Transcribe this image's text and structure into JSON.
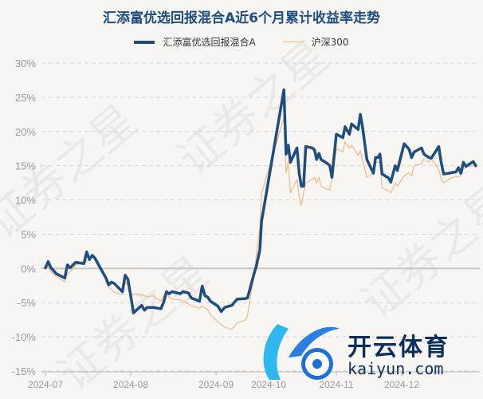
{
  "colors": {
    "fund": "#1f4e7e",
    "index": "#f0b98a",
    "grid": "#d9d6d0",
    "zero": "#c8c6c2",
    "tick": "#9a9a9a"
  },
  "watermark": "证券之星",
  "logo": {
    "cn": "开云体育",
    "en": "kaiyun.com"
  },
  "chart_data": {
    "type": "line",
    "title": "汇添富优选回报混合A近6个月累计收益率走势",
    "legend_position": "top",
    "grid": true,
    "ylim": [
      -15,
      30
    ],
    "y_ticks": [
      "30%",
      "25%",
      "20%",
      "15%",
      "10%",
      "5%",
      "0%",
      "-5%",
      "-10%",
      "-15%"
    ],
    "y_tick_values": [
      30,
      25,
      20,
      15,
      10,
      5,
      0,
      -5,
      -10,
      -15
    ],
    "x_ticks": [
      "2024-07",
      "2024-08",
      "2024-09",
      "2024-10",
      "2024-11",
      "2024-12"
    ],
    "x": [
      "2024-07-01",
      "2024-07-02",
      "2024-07-03",
      "2024-07-05",
      "2024-07-08",
      "2024-07-09",
      "2024-07-10",
      "2024-07-12",
      "2024-07-15",
      "2024-07-16",
      "2024-07-17",
      "2024-07-18",
      "2024-07-19",
      "2024-07-22",
      "2024-07-23",
      "2024-07-24",
      "2024-07-25",
      "2024-07-26",
      "2024-07-29",
      "2024-07-30",
      "2024-07-31",
      "2024-08-01",
      "2024-08-02",
      "2024-08-05",
      "2024-08-06",
      "2024-08-07",
      "2024-08-09",
      "2024-08-12",
      "2024-08-13",
      "2024-08-14",
      "2024-08-15",
      "2024-08-16",
      "2024-08-19",
      "2024-08-20",
      "2024-08-22",
      "2024-08-23",
      "2024-08-26",
      "2024-08-27",
      "2024-08-28",
      "2024-08-29",
      "2024-08-30",
      "2024-09-02",
      "2024-09-04",
      "2024-09-06",
      "2024-09-10",
      "2024-09-13",
      "2024-09-18",
      "2024-09-19",
      "2024-09-23",
      "2024-09-24",
      "2024-09-26",
      "2024-09-27",
      "2024-10-08",
      "2024-10-09",
      "2024-10-10",
      "2024-10-11",
      "2024-10-14",
      "2024-10-15",
      "2024-10-16",
      "2024-10-17",
      "2024-10-18",
      "2024-10-21",
      "2024-10-22",
      "2024-10-23",
      "2024-10-24",
      "2024-10-25",
      "2024-10-28",
      "2024-10-29",
      "2024-10-30",
      "2024-11-01",
      "2024-11-04",
      "2024-11-05",
      "2024-11-07",
      "2024-11-08",
      "2024-11-11",
      "2024-11-12",
      "2024-11-13",
      "2024-11-15",
      "2024-11-18",
      "2024-11-19",
      "2024-11-20",
      "2024-11-21",
      "2024-11-22",
      "2024-11-25",
      "2024-11-26",
      "2024-11-28",
      "2024-11-29",
      "2024-12-02",
      "2024-12-04",
      "2024-12-05",
      "2024-12-06",
      "2024-12-09",
      "2024-12-10",
      "2024-12-12",
      "2024-12-13",
      "2024-12-16",
      "2024-12-17",
      "2024-12-18",
      "2024-12-20",
      "2024-12-23",
      "2024-12-24",
      "2024-12-25",
      "2024-12-26",
      "2024-12-27",
      "2024-12-30",
      "2024-12-31"
    ],
    "series": [
      {
        "name": "汇添富优选回报混合A",
        "values": [
          0.1,
          1.0,
          0.1,
          -0.8,
          -1.4,
          0.5,
          0.1,
          0.9,
          0.7,
          2.4,
          1.3,
          1.9,
          1.5,
          -0.7,
          -1.4,
          -2.4,
          -2.0,
          -2.2,
          -3.4,
          -1.0,
          -1.6,
          -4.0,
          -6.5,
          -5.4,
          -6.1,
          -5.7,
          -5.7,
          -5.9,
          -4.9,
          -3.4,
          -3.7,
          -3.4,
          -3.7,
          -3.4,
          -3.6,
          -4.3,
          -4.8,
          -2.6,
          -4.0,
          -4.2,
          -4.8,
          -5.5,
          -6.3,
          -5.7,
          -5.4,
          -4.5,
          -4.4,
          -4.3,
          -0.5,
          0.3,
          2.7,
          6.9,
          26.1,
          16.7,
          18.0,
          15.5,
          17.6,
          13.9,
          12.0,
          12.0,
          17.8,
          17.6,
          17.3,
          15.9,
          16.8,
          15.9,
          15.3,
          15.0,
          13.3,
          19.6,
          19.1,
          20.7,
          19.6,
          21.1,
          20.3,
          22.5,
          20.7,
          15.9,
          13.9,
          16.2,
          16.2,
          16.7,
          13.8,
          13.2,
          12.6,
          15.0,
          14.3,
          18.2,
          17.4,
          16.2,
          17.0,
          17.6,
          16.7,
          16.2,
          16.1,
          17.8,
          15.5,
          13.8,
          13.9,
          14.1,
          14.7,
          13.9,
          15.5,
          14.9,
          15.6,
          15.0
        ]
      },
      {
        "name": "沪深300",
        "values": [
          0.1,
          0.3,
          -0.5,
          -1.2,
          -2.0,
          -0.8,
          -0.5,
          0.5,
          0.8,
          1.0,
          1.5,
          1.8,
          1.2,
          -0.5,
          -2.0,
          -2.8,
          -3.0,
          -3.5,
          -3.8,
          -2.0,
          -2.5,
          -3.8,
          -3.8,
          -3.8,
          -4.0,
          -4.2,
          -4.0,
          -4.8,
          -4.0,
          -3.5,
          -4.2,
          -4.5,
          -4.6,
          -4.8,
          -5.2,
          -5.5,
          -5.8,
          -5.5,
          -5.8,
          -6.0,
          -6.8,
          -7.8,
          -8.2,
          -8.6,
          -8.9,
          -8.0,
          -7.5,
          -6.8,
          -0.5,
          2.0,
          6.0,
          11.0,
          22.0,
          14.0,
          15.5,
          11.0,
          13.0,
          10.5,
          9.2,
          11.0,
          12.5,
          13.0,
          13.3,
          12.5,
          13.3,
          12.0,
          11.5,
          11.5,
          13.0,
          17.5,
          17.0,
          18.5,
          17.5,
          18.0,
          16.5,
          17.2,
          15.8,
          13.3,
          14.0,
          15.5,
          15.5,
          15.5,
          11.8,
          11.3,
          11.0,
          12.5,
          12.0,
          13.5,
          14.0,
          13.5,
          15.0,
          15.3,
          16.0,
          15.5,
          16.0,
          14.5,
          13.0,
          12.5,
          13.0,
          13.5,
          13.3,
          13.6,
          14.5,
          14.8,
          15.0,
          15.0
        ]
      }
    ]
  }
}
